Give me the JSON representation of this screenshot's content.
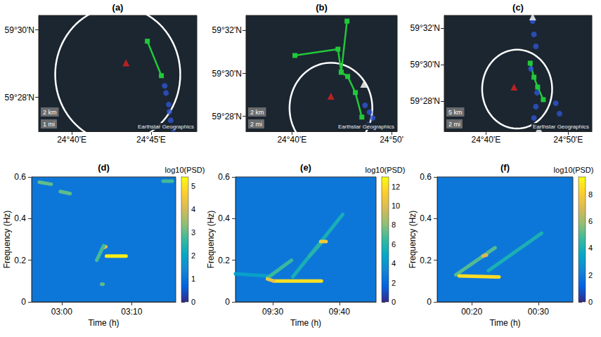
{
  "chart_data": [
    {
      "type": "map",
      "title": "(a)",
      "xlim": [
        24.632,
        24.798
      ],
      "ylim": [
        59.45,
        59.5071
      ],
      "xticks": [
        {
          "value": 24.6667,
          "label": "24°40'E"
        },
        {
          "value": 24.75,
          "label": "24°45'E"
        }
      ],
      "yticks": [
        {
          "value": 59.4667,
          "label": "59°28'N"
        },
        {
          "value": 59.5,
          "label": "59°30'N"
        }
      ],
      "circle": {
        "center": [
          24.715,
          59.478
        ],
        "radius_km": 3.7,
        "color": "#ffffff"
      },
      "series": [
        {
          "type": "line",
          "color": "#22c83a",
          "marker": "square",
          "line_style": "solid",
          "x": [
            24.7461,
            24.7608
          ],
          "y": [
            59.4944,
            59.4774
          ]
        },
        {
          "type": "scatter",
          "color": "#2f55d4",
          "marker": "circle",
          "x": [
            24.7643,
            24.7657,
            24.7685,
            24.7692,
            24.7706,
            24.7734
          ],
          "y": [
            59.4724,
            59.4689,
            59.4632,
            59.4597,
            59.4554,
            59.4512
          ]
        },
        {
          "type": "scatter",
          "color": "#e02020",
          "marker": "triangle",
          "x": [
            24.7237
          ],
          "y": [
            59.4837
          ]
        }
      ],
      "scale_labels": [
        "2 km",
        "1 mi"
      ],
      "attribution": "Earthstar Geographics"
    },
    {
      "type": "map",
      "title": "(b)",
      "xlim": [
        24.59,
        24.8426
      ],
      "ylim": [
        59.455,
        59.545
      ],
      "xticks": [
        {
          "value": 24.6667,
          "label": "24°40'E"
        },
        {
          "value": 24.8333,
          "label": "24°50'"
        }
      ],
      "yticks": [
        {
          "value": 59.4667,
          "label": "59°28'N"
        },
        {
          "value": 59.5,
          "label": "59°30'N"
        },
        {
          "value": 59.5333,
          "label": "59°32'N"
        }
      ],
      "circle": {
        "center": [
          24.7319,
          59.4731
        ],
        "radius_km": 3.9,
        "color": "#ffffff"
      },
      "series": [
        {
          "type": "line",
          "color": "#22c83a",
          "marker": "square",
          "line_style": "solid",
          "x": [
            24.7588,
            24.7491,
            24.7599,
            24.7728,
            24.7836
          ],
          "y": [
            59.5406,
            59.5009,
            59.4976,
            59.4851,
            59.466
          ]
        },
        {
          "type": "line",
          "color": "#22c83a",
          "marker": "square",
          "line_style": "solid",
          "x": [
            24.6717,
            24.7437,
            24.7491
          ],
          "y": [
            59.5139,
            59.5188,
            59.5009
          ]
        },
        {
          "type": "scatter",
          "color": "#2f55d4",
          "marker": "circle",
          "x": [
            24.7889,
            24.7964,
            24.8018,
            24.7943,
            24.805
          ],
          "y": [
            59.4752,
            59.4698,
            59.4654,
            59.46,
            59.4578
          ]
        },
        {
          "type": "scatter",
          "color": "#ffffff",
          "marker": "triangle",
          "x": [
            24.7867
          ],
          "y": [
            59.4916
          ]
        },
        {
          "type": "scatter",
          "color": "#e02020",
          "marker": "triangle",
          "x": [
            24.7319
          ],
          "y": [
            59.4823
          ]
        }
      ],
      "scale_labels": [
        "2 km",
        "2 mi"
      ],
      "attribution": "Earthstar Geographics"
    },
    {
      "type": "map",
      "title": "(c)",
      "xlim": [
        24.5821,
        24.8814
      ],
      "ylim": [
        59.4391,
        59.5449
      ],
      "xticks": [
        {
          "value": 24.6667,
          "label": "24°40'E"
        },
        {
          "value": 24.8333,
          "label": "24°50'E"
        }
      ],
      "yticks": [
        {
          "value": 59.4667,
          "label": "59°28'N"
        },
        {
          "value": 59.5,
          "label": "59°30'N"
        },
        {
          "value": 59.5333,
          "label": "59°32'N"
        }
      ],
      "circle": {
        "center": [
          24.7299,
          59.4776
        ],
        "radius_km": 4.0,
        "color": "#ffffff"
      },
      "series": [
        {
          "type": "line",
          "color": "#22c83a",
          "marker": "square",
          "line_style": "solid",
          "x": [
            24.7564,
            24.764,
            24.7715,
            24.7829
          ],
          "y": [
            59.5013,
            59.4885,
            59.4795,
            59.468
          ]
        },
        {
          "type": "scatter",
          "color": "#2f55d4",
          "marker": "circle",
          "x": [
            24.7614,
            24.764,
            24.7678,
            24.7577,
            24.7703,
            24.7678,
            24.764,
            24.8082,
            24.8158
          ],
          "y": [
            59.5398,
            59.5276,
            59.5167,
            59.4962,
            59.4744,
            59.4616,
            59.4513,
            59.4648,
            59.4552
          ]
        },
        {
          "type": "scatter",
          "color": "#ffffff",
          "marker": "triangle",
          "x": [
            24.7614,
            24.7741
          ],
          "y": [
            59.5436,
            59.4411
          ]
        },
        {
          "type": "scatter",
          "color": "#e02020",
          "marker": "triangle",
          "x": [
            24.7236
          ],
          "y": [
            59.4795
          ]
        }
      ],
      "scale_labels": [
        "5 km",
        "2 mi"
      ],
      "attribution": "Earthstar Geographics"
    },
    {
      "type": "spectrogram",
      "title": "(d)",
      "xlabel": "Time (h)",
      "ylabel": "Frequency (Hz)",
      "xlim": [
        175.7,
        196.3
      ],
      "xticks": [
        {
          "value": 180,
          "label": "03:00"
        },
        {
          "value": 190,
          "label": "03:10"
        }
      ],
      "ylim": [
        0,
        0.6
      ],
      "yticks": [
        0,
        0.2,
        0.4,
        0.6
      ],
      "colorbar": {
        "title": "log10(PSD)",
        "lim": [
          0,
          5.4
        ],
        "ticks": [
          0,
          1,
          2,
          3,
          4,
          5
        ]
      },
      "features": [
        {
          "t": [
            186.4,
            189.2
          ],
          "f": [
            0.22,
            0.22
          ],
          "log10_psd": 5.2
        },
        {
          "t": [
            186.0,
            186.3
          ],
          "f": [
            0.26,
            0.265
          ],
          "log10_psd": 4.0
        },
        {
          "t": [
            185.0,
            186.0
          ],
          "f": [
            0.2,
            0.27
          ],
          "log10_psd": 2.8
        },
        {
          "t": [
            185.7,
            185.9
          ],
          "f": [
            0.085,
            0.085
          ],
          "log10_psd": 3.0
        },
        {
          "t": [
            176.8,
            178.5
          ],
          "f": [
            0.575,
            0.565
          ],
          "log10_psd": 3.0
        },
        {
          "t": [
            179.8,
            181.2
          ],
          "f": [
            0.53,
            0.52
          ],
          "log10_psd": 3.0
        },
        {
          "t": [
            194.5,
            195.8
          ],
          "f": [
            0.58,
            0.58
          ],
          "log10_psd": 2.8
        }
      ]
    },
    {
      "type": "spectrogram",
      "title": "(e)",
      "xlabel": "Time (h)",
      "ylabel": "Frequency (Hz)",
      "xlim": [
        564.4,
        585.5
      ],
      "xticks": [
        {
          "value": 570,
          "label": "09:30"
        },
        {
          "value": 580,
          "label": "09:40"
        }
      ],
      "ylim": [
        0,
        0.6
      ],
      "yticks": [
        0,
        0.2,
        0.4,
        0.6
      ],
      "colorbar": {
        "title": "log10(PSD)",
        "lim": [
          0,
          13
        ],
        "ticks": [
          0,
          2,
          4,
          6,
          8,
          10,
          12
        ]
      },
      "features": [
        {
          "t": [
            564.4,
            569.2
          ],
          "f": [
            0.135,
            0.125
          ],
          "log10_psd": 4.5
        },
        {
          "t": [
            569.2,
            572.8
          ],
          "f": [
            0.115,
            0.2
          ],
          "log10_psd": 6.5
        },
        {
          "t": [
            573.0,
            580.5
          ],
          "f": [
            0.12,
            0.42
          ],
          "log10_psd": 5.5
        },
        {
          "t": [
            575.5,
            577.2
          ],
          "f": [
            0.22,
            0.28
          ],
          "log10_psd": 6.0
        },
        {
          "t": [
            570.2,
            577.3
          ],
          "f": [
            0.1,
            0.1
          ],
          "log10_psd": 12
        },
        {
          "t": [
            569.2,
            570.2
          ],
          "f": [
            0.11,
            0.1
          ],
          "log10_psd": 10.5
        },
        {
          "t": [
            577.2,
            578.0
          ],
          "f": [
            0.29,
            0.29
          ],
          "log10_psd": 11
        }
      ]
    },
    {
      "type": "spectrogram",
      "title": "(f)",
      "xlabel": "Time (h)",
      "ylabel": "Frequency (Hz)",
      "xlim": [
        14.8,
        35.2
      ],
      "xticks": [
        {
          "value": 20,
          "label": "00:20"
        },
        {
          "value": 30,
          "label": "00:30"
        }
      ],
      "ylim": [
        0,
        0.6
      ],
      "yticks": [
        0,
        0.2,
        0.4,
        0.6
      ],
      "colorbar": {
        "title": "log10(PSD)",
        "lim": [
          0,
          9.3
        ],
        "ticks": [
          0,
          2,
          4,
          6,
          8
        ]
      },
      "features": [
        {
          "t": [
            17.6,
            23.5
          ],
          "f": [
            0.13,
            0.26
          ],
          "log10_psd": 5
        },
        {
          "t": [
            22.5,
            30.5
          ],
          "f": [
            0.15,
            0.33
          ],
          "log10_psd": 4
        },
        {
          "t": [
            18.1,
            24.1
          ],
          "f": [
            0.125,
            0.12
          ],
          "log10_psd": 8.5
        },
        {
          "t": [
            21.7,
            22.2
          ],
          "f": [
            0.22,
            0.225
          ],
          "log10_psd": 7
        }
      ]
    }
  ]
}
